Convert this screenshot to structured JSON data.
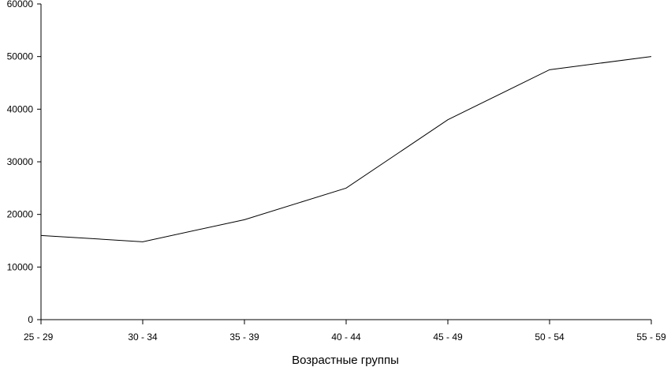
{
  "chart_data": {
    "type": "line",
    "title": "",
    "xlabel": "Возрастные группы",
    "ylabel": "",
    "categories": [
      "25 - 29",
      "30 - 34",
      "35 - 39",
      "40 - 44",
      "45 - 49",
      "50 - 54",
      "55 - 59"
    ],
    "series": [
      {
        "values": [
          16000,
          14800,
          19000,
          25000,
          38000,
          47500,
          50000
        ]
      }
    ],
    "ylim": [
      0,
      60000
    ],
    "yticks": [
      0,
      10000,
      20000,
      30000,
      40000,
      50000,
      60000
    ],
    "grid": false,
    "legend": "none",
    "line_color": "#000000"
  }
}
